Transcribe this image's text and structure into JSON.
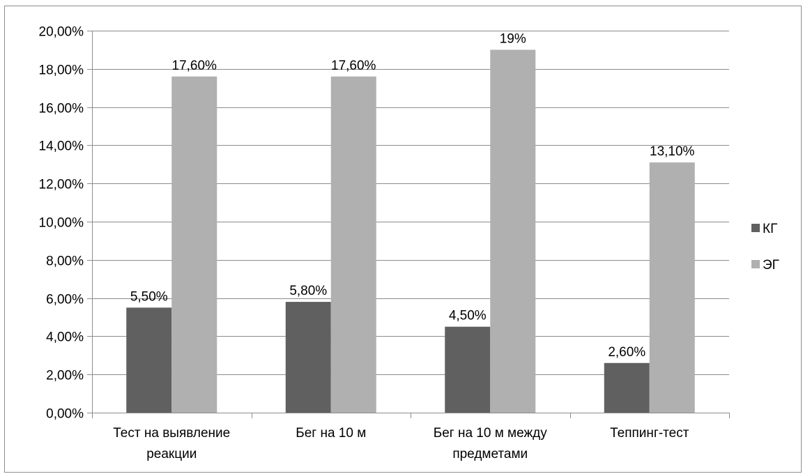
{
  "chart_data": {
    "type": "bar",
    "title": "",
    "xlabel": "",
    "ylabel": "",
    "categories": [
      [
        "Тест на выявление",
        "реакции"
      ],
      [
        "Бег на 10 м"
      ],
      [
        "Бег на 10 м между",
        "предметами"
      ],
      [
        "Теппинг-тест"
      ]
    ],
    "series": [
      {
        "name": "КГ",
        "color": "#606060",
        "values": [
          5.5,
          5.8,
          4.5,
          2.6
        ],
        "labels": [
          "5,50%",
          "5,80%",
          "4,50%",
          "2,60%"
        ]
      },
      {
        "name": "ЭГ",
        "color": "#b0b0b0",
        "values": [
          17.6,
          17.6,
          19,
          13.1
        ],
        "labels": [
          "17,60%",
          "17,60%",
          "19%",
          "13,10%"
        ]
      }
    ],
    "ylim": [
      0,
      20
    ],
    "yticks": [
      0,
      2,
      4,
      6,
      8,
      10,
      12,
      14,
      16,
      18,
      20
    ],
    "ytick_labels": [
      "0,00%",
      "2,00%",
      "4,00%",
      "6,00%",
      "8,00%",
      "10,00%",
      "12,00%",
      "14,00%",
      "16,00%",
      "18,00%",
      "20,00%"
    ],
    "grid": true,
    "legend_position": "right"
  }
}
